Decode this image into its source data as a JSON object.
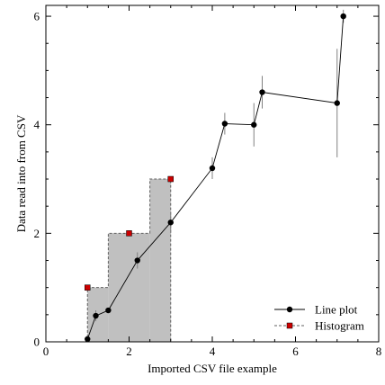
{
  "chart_data": {
    "type": "line",
    "title": "",
    "xlabel": "Imported CSV file example",
    "ylabel": "Data read into from CSV",
    "xlim": [
      0,
      8
    ],
    "ylim": [
      0,
      6.2
    ],
    "xticks": [
      0,
      2,
      4,
      6,
      8
    ],
    "yticks": [
      0,
      2,
      4,
      6
    ],
    "grid": false,
    "legend_position": "bottom-right",
    "colors": {
      "line": "#000000",
      "histogram_fill": "#c0c0c0",
      "histogram_edge": "#606060",
      "histogram_marker": "#cc0000",
      "error_bar": "#808080"
    },
    "series": [
      {
        "name": "Line plot",
        "kind": "line-with-markers",
        "x": [
          1.0,
          1.2,
          1.5,
          2.2,
          3.0,
          4.0,
          4.3,
          5.0,
          5.2,
          7.0,
          7.15
        ],
        "y": [
          0.05,
          0.48,
          0.58,
          1.5,
          2.2,
          3.2,
          4.02,
          4.0,
          4.6,
          4.4,
          6.0
        ],
        "yerr": [
          0.0,
          0.1,
          0.0,
          0.15,
          0.2,
          0.2,
          0.2,
          0.4,
          0.3,
          1.0,
          0.12
        ]
      },
      {
        "name": "Histogram",
        "kind": "step-histogram",
        "bins": [
          {
            "x0": 1.0,
            "x1": 1.5,
            "value": 1.0
          },
          {
            "x0": 1.5,
            "x1": 2.5,
            "value": 2.0
          },
          {
            "x0": 2.5,
            "x1": 3.0,
            "value": 3.0
          }
        ],
        "markers_x": [
          1.0,
          2.0,
          3.0
        ],
        "markers_y": [
          1.0,
          2.0,
          3.0
        ]
      }
    ]
  }
}
